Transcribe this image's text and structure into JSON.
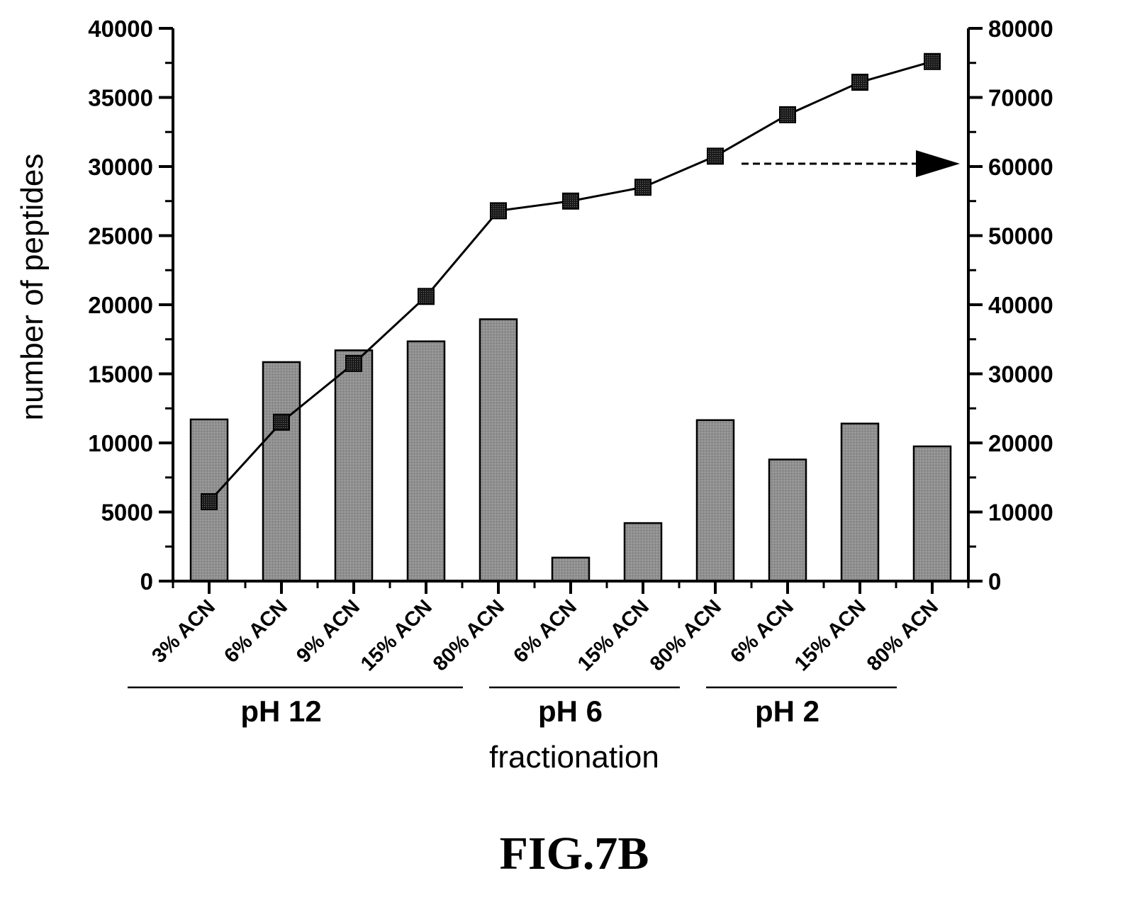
{
  "chart_data": {
    "type": "bar",
    "categories": [
      "3% ACN",
      "6% ACN",
      "9% ACN",
      "15% ACN",
      "80% ACN",
      "6% ACN",
      "15% ACN",
      "80% ACN",
      "6% ACN",
      "15% ACN",
      "80% ACN"
    ],
    "groups": [
      {
        "label": "pH 12",
        "from": 0,
        "to": 4
      },
      {
        "label": "pH 6",
        "from": 5,
        "to": 7
      },
      {
        "label": "pH 2",
        "from": 8,
        "to": 10
      }
    ],
    "series": [
      {
        "type": "bar",
        "axis": "left",
        "values": [
          11700,
          15850,
          16700,
          17350,
          18950,
          1700,
          4200,
          11650,
          8800,
          11400,
          9750
        ],
        "color": "#8c8c8c"
      },
      {
        "type": "line",
        "axis": "right",
        "marker": "square",
        "values": [
          11500,
          23000,
          31500,
          41200,
          53600,
          55000,
          57000,
          61500,
          67500,
          72200,
          75200
        ],
        "color": "#000000"
      }
    ],
    "left_axis": {
      "label": "number of peptides",
      "min": 0,
      "max": 40000,
      "ticks": [
        0,
        5000,
        10000,
        15000,
        20000,
        25000,
        30000,
        35000,
        40000
      ]
    },
    "right_axis": {
      "label": "",
      "min": 0,
      "max": 80000,
      "ticks": [
        0,
        10000,
        20000,
        30000,
        40000,
        50000,
        60000,
        70000,
        80000
      ]
    },
    "xlabel": "fractionation",
    "annotation": {
      "type": "dashed-arrow",
      "points_to": "right axis",
      "at_value": 60000
    },
    "legend": "none",
    "grid": false
  },
  "caption": "FIG.7B"
}
